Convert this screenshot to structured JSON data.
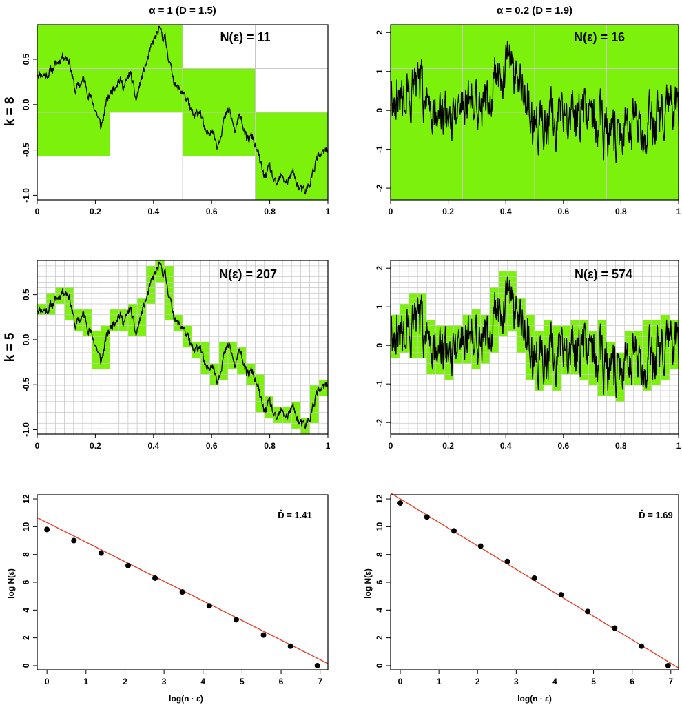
{
  "column_titles": [
    "α = 1  (D = 1.5)",
    "α = 0.2  (D = 1.9)"
  ],
  "row_labels": [
    "k = 8",
    "k = 5"
  ],
  "colors": {
    "box_fill": "#7CF20C",
    "grid": "#c8c8c8",
    "series": "#000000",
    "fit_line": "#e8402a",
    "point": "#000000"
  },
  "chart_data": [
    {
      "type": "line",
      "panel": "top-left",
      "annotation": "N(ε) = 11",
      "xlim": [
        0,
        1
      ],
      "ylim": [
        -1.05,
        0.88
      ],
      "xticks": [
        0,
        0.2,
        0.4,
        0.6,
        0.8,
        1
      ],
      "xtick_labels": [
        "0",
        "0.2",
        "0.4",
        "0.6",
        "0.8",
        "1"
      ],
      "yticks": [
        -1.0,
        -0.5,
        0.0,
        0.5
      ],
      "ytick_labels": [
        "-1.0",
        "-0.5",
        "0.0",
        "0.5"
      ],
      "grid_divisions": 4,
      "box_fill": "yes",
      "noise": 0.045,
      "seed": 11,
      "x": [
        0,
        0.03,
        0.06,
        0.09,
        0.11,
        0.13,
        0.16,
        0.18,
        0.2,
        0.22,
        0.24,
        0.26,
        0.28,
        0.3,
        0.32,
        0.34,
        0.36,
        0.38,
        0.4,
        0.42,
        0.44,
        0.46,
        0.48,
        0.5,
        0.52,
        0.54,
        0.56,
        0.58,
        0.6,
        0.62,
        0.64,
        0.66,
        0.68,
        0.7,
        0.72,
        0.74,
        0.76,
        0.78,
        0.8,
        0.82,
        0.84,
        0.86,
        0.88,
        0.9,
        0.92,
        0.94,
        0.96,
        0.98,
        1.0
      ],
      "y": [
        0.35,
        0.32,
        0.42,
        0.55,
        0.5,
        0.15,
        0.28,
        0.1,
        -0.05,
        -0.25,
        0.05,
        0.18,
        0.28,
        0.2,
        0.35,
        0.05,
        0.3,
        0.5,
        0.7,
        0.82,
        0.72,
        0.4,
        0.18,
        0.15,
        0.0,
        -0.15,
        -0.05,
        -0.35,
        -0.25,
        -0.45,
        -0.2,
        -0.05,
        -0.3,
        -0.1,
        -0.4,
        -0.35,
        -0.55,
        -0.8,
        -0.7,
        -0.9,
        -0.8,
        -0.85,
        -0.75,
        -0.92,
        -0.98,
        -0.85,
        -0.6,
        -0.55,
        -0.5
      ]
    },
    {
      "type": "line",
      "panel": "top-right",
      "annotation": "N(ε) = 16",
      "xlim": [
        0,
        1
      ],
      "ylim": [
        -2.3,
        2.2
      ],
      "xticks": [
        0,
        0.2,
        0.4,
        0.6,
        0.8,
        1
      ],
      "xtick_labels": [
        "0",
        "0.2",
        "0.4",
        "0.6",
        "0.8",
        "1"
      ],
      "yticks": [
        -2,
        -1,
        0,
        1,
        2
      ],
      "ytick_labels": [
        "-2",
        "-1",
        "0",
        "1",
        "2"
      ],
      "grid_divisions": 4,
      "box_fill": "full",
      "noise": 0.55,
      "seed": 16,
      "x": [
        0,
        0.05,
        0.1,
        0.15,
        0.2,
        0.25,
        0.3,
        0.35,
        0.4,
        0.45,
        0.5,
        0.55,
        0.6,
        0.65,
        0.7,
        0.75,
        0.8,
        0.85,
        0.9,
        0.95,
        1.0
      ],
      "y": [
        0.4,
        0.3,
        0.5,
        0.1,
        -0.1,
        0.3,
        0.2,
        0.6,
        1.1,
        0.6,
        -0.3,
        -0.2,
        -0.3,
        0.0,
        -0.2,
        -0.5,
        -0.6,
        -0.3,
        -0.4,
        -0.1,
        0.0
      ]
    },
    {
      "type": "line",
      "panel": "middle-left",
      "annotation": "N(ε) = 207",
      "xlim": [
        0,
        1
      ],
      "ylim": [
        -1.05,
        0.88
      ],
      "xticks": [
        0,
        0.2,
        0.4,
        0.6,
        0.8,
        1
      ],
      "xtick_labels": [
        "0",
        "0.2",
        "0.4",
        "0.6",
        "0.8",
        "1"
      ],
      "yticks": [
        -1.0,
        -0.5,
        0.0,
        0.5
      ],
      "ytick_labels": [
        "-1.0",
        "-0.5",
        "0.0",
        "0.5"
      ],
      "grid_divisions": 32,
      "box_fill": "path",
      "noise": 0.045,
      "seed": 11,
      "x": [
        0,
        0.03,
        0.06,
        0.09,
        0.11,
        0.13,
        0.16,
        0.18,
        0.2,
        0.22,
        0.24,
        0.26,
        0.28,
        0.3,
        0.32,
        0.34,
        0.36,
        0.38,
        0.4,
        0.42,
        0.44,
        0.46,
        0.48,
        0.5,
        0.52,
        0.54,
        0.56,
        0.58,
        0.6,
        0.62,
        0.64,
        0.66,
        0.68,
        0.7,
        0.72,
        0.74,
        0.76,
        0.78,
        0.8,
        0.82,
        0.84,
        0.86,
        0.88,
        0.9,
        0.92,
        0.94,
        0.96,
        0.98,
        1.0
      ],
      "y": [
        0.35,
        0.32,
        0.42,
        0.55,
        0.5,
        0.15,
        0.28,
        0.1,
        -0.05,
        -0.25,
        0.05,
        0.18,
        0.28,
        0.2,
        0.35,
        0.05,
        0.3,
        0.5,
        0.7,
        0.82,
        0.72,
        0.4,
        0.18,
        0.15,
        0.0,
        -0.15,
        -0.05,
        -0.35,
        -0.25,
        -0.45,
        -0.2,
        -0.05,
        -0.3,
        -0.1,
        -0.4,
        -0.35,
        -0.55,
        -0.8,
        -0.7,
        -0.9,
        -0.8,
        -0.85,
        -0.75,
        -0.92,
        -0.98,
        -0.85,
        -0.6,
        -0.55,
        -0.5
      ]
    },
    {
      "type": "line",
      "panel": "middle-right",
      "annotation": "N(ε) = 574",
      "xlim": [
        0,
        1
      ],
      "ylim": [
        -2.3,
        2.2
      ],
      "xticks": [
        0,
        0.2,
        0.4,
        0.6,
        0.8,
        1
      ],
      "xtick_labels": [
        "0",
        "0.2",
        "0.4",
        "0.6",
        "0.8",
        "1"
      ],
      "yticks": [
        -2,
        -1,
        0,
        1,
        2
      ],
      "ytick_labels": [
        "-2",
        "-1",
        "0",
        "1",
        "2"
      ],
      "grid_divisions": 32,
      "box_fill": "path",
      "noise": 0.55,
      "seed": 16,
      "x": [
        0,
        0.05,
        0.1,
        0.15,
        0.2,
        0.25,
        0.3,
        0.35,
        0.4,
        0.45,
        0.5,
        0.55,
        0.6,
        0.65,
        0.7,
        0.75,
        0.8,
        0.85,
        0.9,
        0.95,
        1.0
      ],
      "y": [
        0.4,
        0.3,
        0.5,
        0.1,
        -0.1,
        0.3,
        0.2,
        0.6,
        1.1,
        0.6,
        -0.3,
        -0.2,
        -0.3,
        0.0,
        -0.2,
        -0.5,
        -0.6,
        -0.3,
        -0.4,
        -0.1,
        0.0
      ]
    },
    {
      "type": "scatter",
      "panel": "bottom-left",
      "annotation": "D̂ = 1.41",
      "xlabel": "log(n · ε)",
      "ylabel": "log N(ε)",
      "xlim": [
        -0.25,
        7.2
      ],
      "ylim": [
        -0.3,
        12.3
      ],
      "xticks": [
        0,
        1,
        2,
        3,
        4,
        5,
        6,
        7
      ],
      "xtick_labels": [
        "0",
        "1",
        "2",
        "3",
        "4",
        "5",
        "6",
        "7"
      ],
      "yticks": [
        0,
        2,
        4,
        6,
        8,
        10,
        12
      ],
      "ytick_labels": [
        "0",
        "2",
        "4",
        "6",
        "8",
        "10",
        "12"
      ],
      "x": [
        0,
        0.69,
        1.39,
        2.08,
        2.77,
        3.47,
        4.16,
        4.85,
        5.55,
        6.24,
        6.93
      ],
      "y": [
        9.8,
        9.0,
        8.1,
        7.2,
        6.3,
        5.3,
        4.3,
        3.3,
        2.2,
        1.4,
        0.0
      ],
      "fit": {
        "slope": -1.41,
        "intercept": 10.3
      }
    },
    {
      "type": "scatter",
      "panel": "bottom-right",
      "annotation": "D̂ = 1.69",
      "xlabel": "log(n · ε)",
      "ylabel": "log N(ε)",
      "xlim": [
        -0.25,
        7.2
      ],
      "ylim": [
        -0.3,
        12.3
      ],
      "xticks": [
        0,
        1,
        2,
        3,
        4,
        5,
        6,
        7
      ],
      "xtick_labels": [
        "0",
        "1",
        "2",
        "3",
        "4",
        "5",
        "6",
        "7"
      ],
      "yticks": [
        0,
        2,
        4,
        6,
        8,
        10,
        12
      ],
      "ytick_labels": [
        "0",
        "2",
        "4",
        "6",
        "8",
        "10",
        "12"
      ],
      "x": [
        0,
        0.69,
        1.39,
        2.08,
        2.77,
        3.47,
        4.16,
        4.85,
        5.55,
        6.24,
        6.93
      ],
      "y": [
        11.7,
        10.7,
        9.7,
        8.6,
        7.5,
        6.3,
        5.1,
        3.9,
        2.7,
        1.4,
        0.0
      ],
      "fit": {
        "slope": -1.69,
        "intercept": 12.0
      }
    }
  ]
}
